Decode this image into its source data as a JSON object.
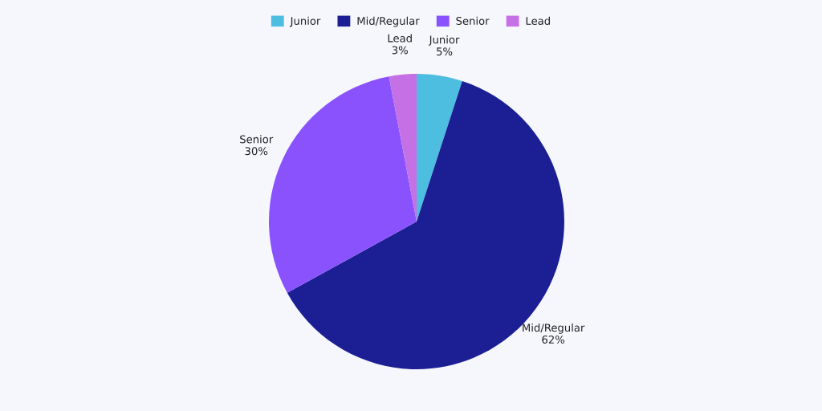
{
  "chart_data": {
    "type": "pie",
    "categories": [
      "Junior",
      "Mid/Regular",
      "Senior",
      "Lead"
    ],
    "values": [
      5,
      62,
      30,
      3
    ],
    "value_labels": [
      "5%",
      "62%",
      "30%",
      "3%"
    ],
    "colors": [
      "#4dbde0",
      "#1c1f94",
      "#8a52fd",
      "#c670e6"
    ],
    "legend": "top"
  }
}
